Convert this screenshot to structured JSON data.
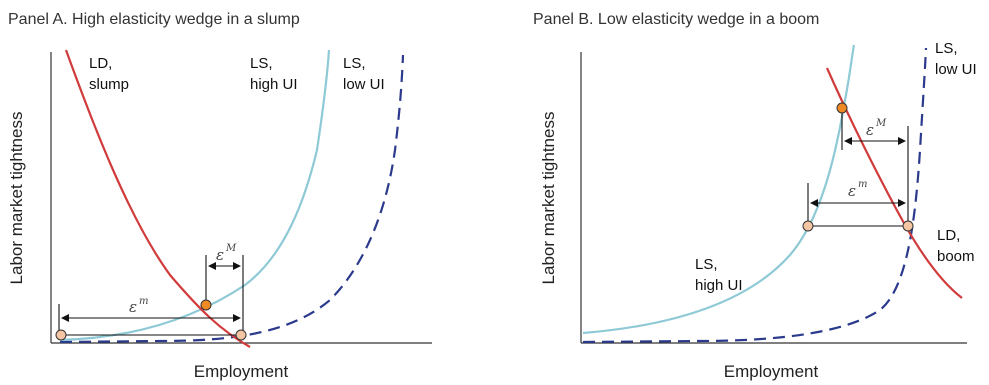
{
  "panels": [
    {
      "title": "Panel A. High elasticity wedge in a slump",
      "xlabel": "Employment",
      "ylabel": "Labor market tightness",
      "labels": {
        "ld_line1": "LD,",
        "ld_line2": "slump",
        "lshigh_line1": "LS,",
        "lshigh_line2": "high UI",
        "lslow_line1": "LS,",
        "lslow_line2": "low UI"
      },
      "wedges": {
        "eps_big": "ε",
        "eps_big_sup": "M",
        "eps_small": "ε",
        "eps_small_sup": "m"
      }
    },
    {
      "title": "Panel B. Low elasticity wedge in a boom",
      "xlabel": "Employment",
      "ylabel": "Labor market tightness",
      "labels": {
        "ld_line1": "LD,",
        "ld_line2": "boom",
        "lshigh_line1": "LS,",
        "lshigh_line2": "high UI",
        "lslow_line1": "LS,",
        "lslow_line2": "low UI"
      },
      "wedges": {
        "eps_big": "ε",
        "eps_big_sup": "M",
        "eps_small": "ε",
        "eps_small_sup": "m"
      }
    }
  ],
  "colors": {
    "labor_demand": "#d13b3b",
    "labor_supply_high_ui": "#8ec9d6",
    "labor_supply_low_ui": "#2b3a8c",
    "equilibrium_dot": "#f08a24",
    "reference_dot": "#f6c6a4"
  }
}
